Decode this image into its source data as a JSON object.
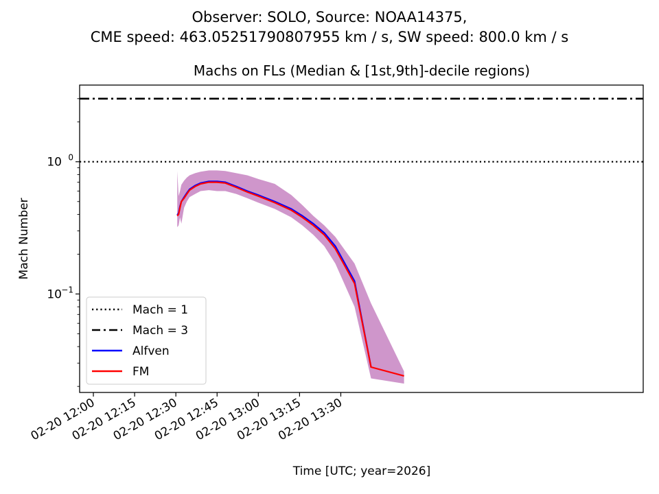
{
  "chart_data": {
    "type": "line",
    "suptitle_line1": "Observer: SOLO, Source: NOAA14375,",
    "suptitle_line2": "CME speed: 463.05251790807955 km / s, SW speed: 800.0 km / s",
    "title": "Machs on FLs (Median & [1st,9th]-decile regions)",
    "xlabel": "Time [UTC; year=2026]",
    "ylabel": "Mach Number",
    "yscale": "log",
    "xlim_minutes": [
      -5,
      200
    ],
    "ylim": [
      0.018,
      3.8
    ],
    "x_ticks": [
      {
        "label": "02-20 12:00",
        "minutes": 0
      },
      {
        "label": "02-20 12:15",
        "minutes": 15
      },
      {
        "label": "02-20 12:30",
        "minutes": 30
      },
      {
        "label": "02-20 12:45",
        "minutes": 45
      },
      {
        "label": "02-20 13:00",
        "minutes": 60
      },
      {
        "label": "02-20 13:15",
        "minutes": 75
      },
      {
        "label": "02-20 13:30",
        "minutes": 90
      }
    ],
    "y_ticks": [
      {
        "label": "10",
        "exp": "−1",
        "value": 0.1
      },
      {
        "label": "10",
        "exp": "0",
        "value": 1.0
      }
    ],
    "hlines": [
      {
        "name": "Mach = 1",
        "value": 1.0,
        "style": "dotted"
      },
      {
        "name": "Mach = 3",
        "value": 3.0,
        "style": "dashdot"
      }
    ],
    "legend": [
      {
        "label": "Mach = 1",
        "style": "dotted",
        "color": "#000000"
      },
      {
        "label": "Mach = 3",
        "style": "dashdot",
        "color": "#000000"
      },
      {
        "label": "Alfven",
        "style": "solid",
        "color": "#0000ff"
      },
      {
        "label": "FM",
        "style": "solid",
        "color": "#ff0000"
      }
    ],
    "legend_position": "lower-left",
    "band_color": "#cc90c8",
    "series": [
      {
        "name": "Alfven",
        "color": "#0000ff",
        "x_minutes": [
          30.5,
          31,
          31.5,
          32,
          33,
          34,
          35,
          37,
          39,
          42,
          45,
          48,
          52,
          56,
          60,
          66,
          72,
          76,
          80,
          84,
          88,
          95,
          101
        ],
        "values": [
          0.395,
          0.41,
          0.46,
          0.5,
          0.54,
          0.58,
          0.62,
          0.66,
          0.69,
          0.71,
          0.71,
          0.7,
          0.65,
          0.6,
          0.56,
          0.5,
          0.44,
          0.39,
          0.34,
          0.29,
          0.23,
          0.125,
          0.028
        ]
      },
      {
        "name": "FM",
        "color": "#ff0000",
        "x_minutes": [
          30.5,
          31,
          31.5,
          32,
          33,
          34,
          35,
          37,
          39,
          42,
          45,
          48,
          52,
          56,
          60,
          66,
          72,
          76,
          80,
          84,
          88,
          95,
          101,
          113
        ],
        "values": [
          0.39,
          0.4,
          0.45,
          0.5,
          0.53,
          0.57,
          0.61,
          0.65,
          0.68,
          0.7,
          0.7,
          0.69,
          0.64,
          0.59,
          0.55,
          0.49,
          0.43,
          0.38,
          0.33,
          0.28,
          0.22,
          0.12,
          0.028,
          0.024
        ]
      }
    ],
    "band": {
      "x_minutes": [
        30.5,
        31,
        31.5,
        32,
        33,
        34,
        35,
        37,
        39,
        42,
        45,
        48,
        52,
        56,
        60,
        66,
        72,
        76,
        80,
        84,
        88,
        95,
        101,
        113
      ],
      "upper": [
        0.85,
        0.55,
        0.6,
        0.67,
        0.72,
        0.76,
        0.79,
        0.82,
        0.84,
        0.86,
        0.86,
        0.85,
        0.82,
        0.79,
        0.74,
        0.68,
        0.56,
        0.47,
        0.39,
        0.33,
        0.27,
        0.17,
        0.085,
        0.026
      ],
      "lower": [
        0.32,
        0.33,
        0.38,
        0.34,
        0.45,
        0.5,
        0.54,
        0.57,
        0.6,
        0.61,
        0.6,
        0.6,
        0.57,
        0.53,
        0.49,
        0.44,
        0.38,
        0.33,
        0.28,
        0.23,
        0.17,
        0.08,
        0.023,
        0.021
      ]
    }
  }
}
